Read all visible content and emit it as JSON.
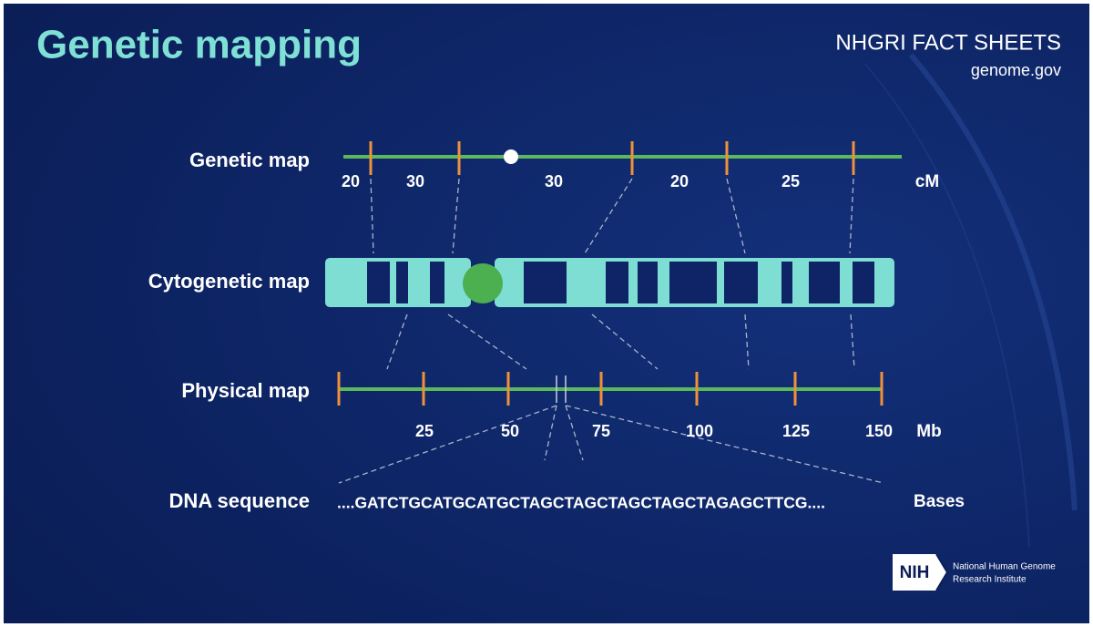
{
  "header": {
    "title": "Genetic mapping",
    "brand": "NHGRI FACT SHEETS",
    "site": "genome.gov"
  },
  "genetic_map": {
    "label": "Genetic map",
    "intervals": [
      20,
      30,
      30,
      20,
      25
    ],
    "unit": "cM"
  },
  "cytogenetic_map": {
    "label": "Cytogenetic map"
  },
  "physical_map": {
    "label": "Physical map",
    "ticks": [
      25,
      50,
      75,
      100,
      125,
      150
    ],
    "unit": "Mb"
  },
  "dna_sequence": {
    "label": "DNA sequence",
    "sequence": "....GATCTGCATGCATGCTAGCTAGCTAGCTAGCTAGAGCTTCG....",
    "unit": "Bases"
  },
  "footer": {
    "logo": "NIH",
    "institute": [
      "National Human Genome",
      "Research Institute"
    ]
  }
}
